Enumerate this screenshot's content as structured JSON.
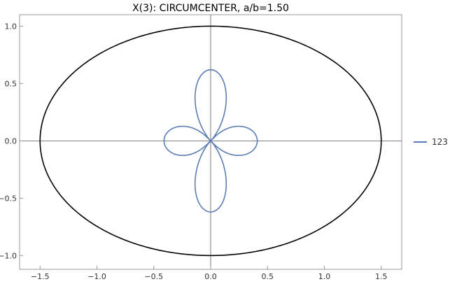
{
  "chart_data": {
    "type": "line",
    "title": "X(3): CIRCUMCENTER, a/b=1.50",
    "xlim": [
      -1.68,
      1.68
    ],
    "ylim": [
      -1.12,
      1.1
    ],
    "x_ticks": [
      -1.5,
      -1.0,
      -0.5,
      0.0,
      0.5,
      1.0,
      1.5
    ],
    "x_tick_labels": [
      "−1.5",
      "−1.0",
      "−0.5",
      "0.0",
      "0.5",
      "1.0",
      "1.5"
    ],
    "y_ticks": [
      -1.0,
      -0.5,
      0.0,
      0.5,
      1.0
    ],
    "y_tick_labels": [
      "−1.0",
      "−0.5",
      "0.0",
      "0.5",
      "1.0"
    ],
    "legend_position": "right",
    "series": [
      {
        "name": "",
        "shape": "ellipse",
        "a": 1.5,
        "b": 1.0,
        "color": "#000000"
      },
      {
        "name": "123",
        "shape": "four-lobed locus",
        "x_extent": [
          -0.41,
          0.41
        ],
        "y_extent": [
          -0.62,
          0.62
        ],
        "color": "#5b7db4"
      }
    ]
  }
}
